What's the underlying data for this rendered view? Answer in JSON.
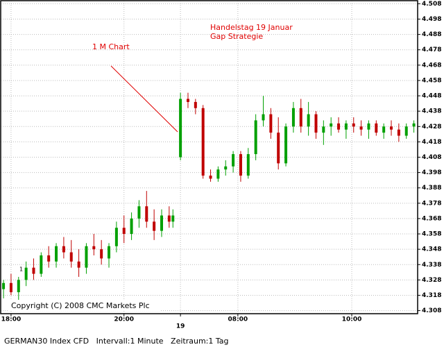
{
  "chart_data": {
    "type": "candlestick",
    "annotations": [
      "1 M Chart",
      "Handelstag 19 Januar",
      "Gap Strategie",
      "1"
    ],
    "copyright": "Copyright (C) 2008 CMC Markets Plc",
    "footer": "GERMAN30 Index CFD   Intervall:1 Minute   Zeitraum:1 Tag",
    "up_color": "#00a000",
    "down_color": "#c00000",
    "grid": true,
    "xlim": [
      -11,
      432
    ],
    "xticks": [
      {
        "value": 0,
        "label": "18:00"
      },
      {
        "value": 120,
        "label": "20:00"
      },
      {
        "value": 180,
        "label": "19"
      },
      {
        "value": 241,
        "label": "08:00"
      },
      {
        "value": 362,
        "label": "10:00"
      }
    ],
    "ylim": [
      4.306,
      4.51
    ],
    "yticks": [
      4.308,
      4.318,
      4.328,
      4.338,
      4.348,
      4.358,
      4.368,
      4.378,
      4.388,
      4.398,
      4.408,
      4.418,
      4.428,
      4.438,
      4.448,
      4.458,
      4.468,
      4.478,
      4.488,
      4.498,
      4.508
    ],
    "x": [
      -8,
      0,
      8,
      16,
      24,
      32,
      40,
      48,
      56,
      64,
      72,
      80,
      88,
      96,
      104,
      112,
      120,
      128,
      136,
      144,
      152,
      160,
      168,
      172,
      180,
      188,
      196,
      204,
      212,
      220,
      228,
      236,
      244,
      252,
      260,
      268,
      276,
      284,
      292,
      300,
      308,
      316,
      324,
      332,
      340,
      348,
      356,
      364,
      372,
      380,
      388,
      396,
      404,
      412,
      420,
      428
    ],
    "open": [
      4.322,
      4.326,
      4.32,
      4.328,
      4.336,
      4.332,
      4.344,
      4.34,
      4.35,
      4.346,
      4.34,
      4.336,
      4.35,
      4.348,
      4.342,
      4.35,
      4.362,
      4.358,
      4.368,
      4.376,
      4.366,
      4.36,
      4.37,
      4.366,
      4.408,
      4.446,
      4.444,
      4.44,
      4.396,
      4.394,
      4.4,
      4.402,
      4.41,
      4.396,
      4.41,
      4.432,
      4.436,
      4.424,
      4.404,
      4.428,
      4.44,
      4.428,
      4.436,
      4.424,
      4.428,
      4.43,
      4.426,
      4.43,
      4.428,
      4.426,
      4.43,
      4.424,
      4.428,
      4.426,
      4.422,
      4.428
    ],
    "high": [
      4.328,
      4.332,
      4.33,
      4.34,
      4.342,
      4.346,
      4.35,
      4.352,
      4.356,
      4.354,
      4.348,
      4.352,
      4.358,
      4.354,
      4.352,
      4.366,
      4.37,
      4.372,
      4.38,
      4.386,
      4.374,
      4.374,
      4.376,
      4.374,
      4.45,
      4.45,
      4.446,
      4.442,
      4.4,
      4.402,
      4.406,
      4.412,
      4.412,
      4.414,
      4.436,
      4.448,
      4.44,
      4.434,
      4.43,
      4.444,
      4.446,
      4.444,
      4.438,
      4.432,
      4.434,
      4.434,
      4.432,
      4.434,
      4.432,
      4.432,
      4.432,
      4.43,
      4.432,
      4.43,
      4.43,
      4.432
    ],
    "low": [
      4.316,
      4.318,
      4.314,
      4.324,
      4.328,
      4.33,
      4.336,
      4.336,
      4.342,
      4.336,
      4.33,
      4.332,
      4.344,
      4.338,
      4.336,
      4.346,
      4.352,
      4.354,
      4.362,
      4.362,
      4.354,
      4.356,
      4.362,
      4.362,
      4.406,
      4.44,
      4.436,
      4.394,
      4.392,
      4.392,
      4.396,
      4.398,
      4.392,
      4.394,
      4.406,
      4.428,
      4.42,
      4.4,
      4.402,
      4.424,
      4.424,
      4.422,
      4.42,
      4.416,
      4.422,
      4.424,
      4.42,
      4.424,
      4.422,
      4.42,
      4.422,
      4.42,
      4.422,
      4.418,
      4.42,
      4.424
    ],
    "close": [
      4.326,
      4.32,
      4.328,
      4.336,
      4.332,
      4.344,
      4.34,
      4.35,
      4.346,
      4.34,
      4.336,
      4.35,
      4.348,
      4.342,
      4.35,
      4.362,
      4.358,
      4.368,
      4.376,
      4.366,
      4.36,
      4.37,
      4.366,
      4.37,
      4.446,
      4.444,
      4.44,
      4.396,
      4.394,
      4.4,
      4.402,
      4.41,
      4.396,
      4.41,
      4.432,
      4.436,
      4.424,
      4.404,
      4.428,
      4.44,
      4.428,
      4.436,
      4.424,
      4.428,
      4.43,
      4.426,
      4.43,
      4.428,
      4.426,
      4.43,
      4.424,
      4.428,
      4.426,
      4.422,
      4.428,
      4.43
    ]
  }
}
